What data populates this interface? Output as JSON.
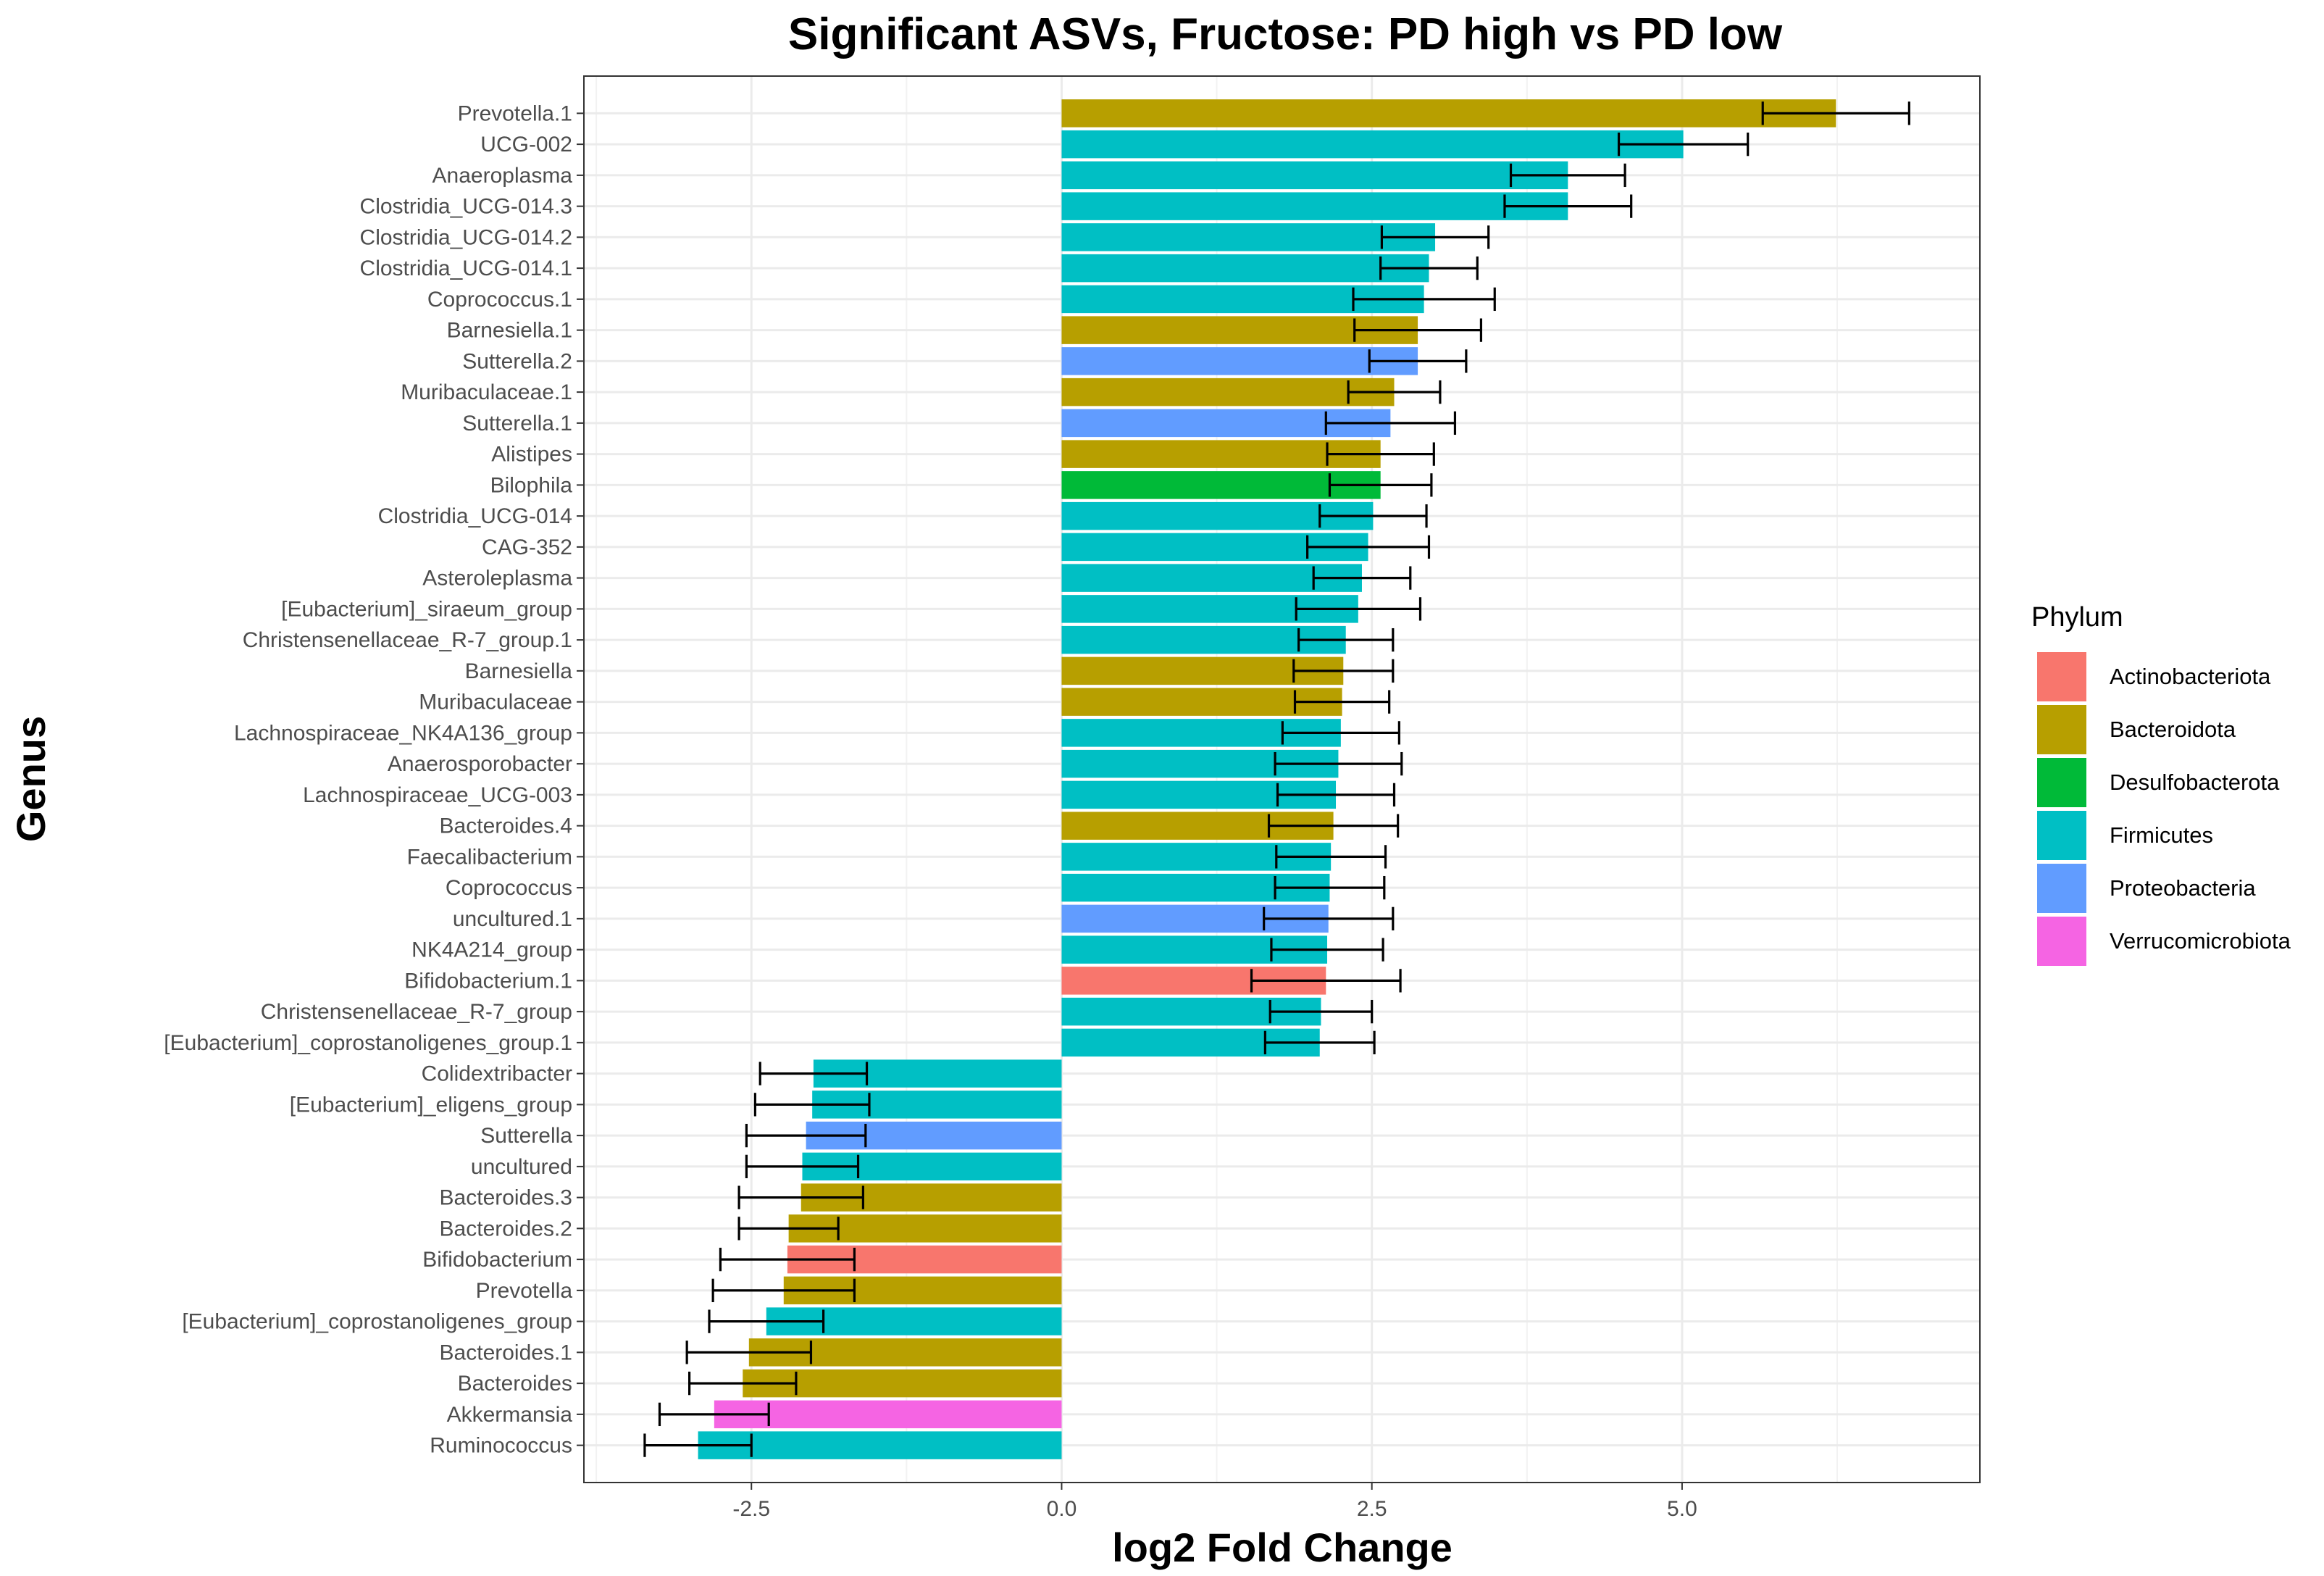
{
  "chart_data": {
    "type": "bar",
    "orientation": "horizontal",
    "title": "Significant ASVs, Fructose: PD high vs PD low",
    "xlabel": "log2 Fold Change",
    "ylabel": "Genus",
    "xlim": [
      -3.85,
      7.4
    ],
    "x_ticks": [
      -2.5,
      0.0,
      2.5,
      5.0
    ],
    "x_tick_labels": [
      "-2.5",
      "0.0",
      "2.5",
      "5.0"
    ],
    "grid": true,
    "legend": {
      "title": "Phylum",
      "placement": "right",
      "entries": [
        {
          "name": "Actinobacteriota",
          "color": "#F8766D"
        },
        {
          "name": "Bacteroidota",
          "color": "#B79F00"
        },
        {
          "name": "Desulfobacterota",
          "color": "#00BA38"
        },
        {
          "name": "Firmicutes",
          "color": "#00BFC4"
        },
        {
          "name": "Proteobacteria",
          "color": "#619CFF"
        },
        {
          "name": "Verrucomicrobiota",
          "color": "#F564E3"
        }
      ]
    },
    "bars": [
      {
        "genus": "Prevotella.1",
        "value": 6.24,
        "err": 0.59,
        "phylum": "Bacteroidota"
      },
      {
        "genus": "UCG-002",
        "value": 5.01,
        "err": 0.52,
        "phylum": "Firmicutes"
      },
      {
        "genus": "Anaeroplasma",
        "value": 4.08,
        "err": 0.46,
        "phylum": "Firmicutes"
      },
      {
        "genus": "Clostridia_UCG-014.3",
        "value": 4.08,
        "err": 0.51,
        "phylum": "Firmicutes"
      },
      {
        "genus": "Clostridia_UCG-014.2",
        "value": 3.01,
        "err": 0.43,
        "phylum": "Firmicutes"
      },
      {
        "genus": "Clostridia_UCG-014.1",
        "value": 2.96,
        "err": 0.39,
        "phylum": "Firmicutes"
      },
      {
        "genus": "Coprococcus.1",
        "value": 2.92,
        "err": 0.57,
        "phylum": "Firmicutes"
      },
      {
        "genus": "Barnesiella.1",
        "value": 2.87,
        "err": 0.51,
        "phylum": "Bacteroidota"
      },
      {
        "genus": "Sutterella.2",
        "value": 2.87,
        "err": 0.39,
        "phylum": "Proteobacteria"
      },
      {
        "genus": "Muribaculaceae.1",
        "value": 2.68,
        "err": 0.37,
        "phylum": "Bacteroidota"
      },
      {
        "genus": "Sutterella.1",
        "value": 2.65,
        "err": 0.52,
        "phylum": "Proteobacteria"
      },
      {
        "genus": "Alistipes",
        "value": 2.57,
        "err": 0.43,
        "phylum": "Bacteroidota"
      },
      {
        "genus": "Bilophila",
        "value": 2.57,
        "err": 0.41,
        "phylum": "Desulfobacterota"
      },
      {
        "genus": "Clostridia_UCG-014",
        "value": 2.51,
        "err": 0.43,
        "phylum": "Firmicutes"
      },
      {
        "genus": "CAG-352",
        "value": 2.47,
        "err": 0.49,
        "phylum": "Firmicutes"
      },
      {
        "genus": "Asteroleplasma",
        "value": 2.42,
        "err": 0.39,
        "phylum": "Firmicutes"
      },
      {
        "genus": "[Eubacterium]_siraeum_group",
        "value": 2.39,
        "err": 0.5,
        "phylum": "Firmicutes"
      },
      {
        "genus": "Christensenellaceae_R-7_group.1",
        "value": 2.29,
        "err": 0.38,
        "phylum": "Firmicutes"
      },
      {
        "genus": "Barnesiella",
        "value": 2.27,
        "err": 0.4,
        "phylum": "Bacteroidota"
      },
      {
        "genus": "Muribaculaceae",
        "value": 2.26,
        "err": 0.38,
        "phylum": "Bacteroidota"
      },
      {
        "genus": "Lachnospiraceae_NK4A136_group",
        "value": 2.25,
        "err": 0.47,
        "phylum": "Firmicutes"
      },
      {
        "genus": "Anaerosporobacter",
        "value": 2.23,
        "err": 0.51,
        "phylum": "Firmicutes"
      },
      {
        "genus": "Lachnospiraceae_UCG-003",
        "value": 2.21,
        "err": 0.47,
        "phylum": "Firmicutes"
      },
      {
        "genus": "Bacteroides.4",
        "value": 2.19,
        "err": 0.52,
        "phylum": "Bacteroidota"
      },
      {
        "genus": "Faecalibacterium",
        "value": 2.17,
        "err": 0.44,
        "phylum": "Firmicutes"
      },
      {
        "genus": "Coprococcus",
        "value": 2.16,
        "err": 0.44,
        "phylum": "Firmicutes"
      },
      {
        "genus": "uncultured.1",
        "value": 2.15,
        "err": 0.52,
        "phylum": "Proteobacteria"
      },
      {
        "genus": "NK4A214_group",
        "value": 2.14,
        "err": 0.45,
        "phylum": "Firmicutes"
      },
      {
        "genus": "Bifidobacterium.1",
        "value": 2.13,
        "err": 0.6,
        "phylum": "Actinobacteriota"
      },
      {
        "genus": "Christensenellaceae_R-7_group",
        "value": 2.09,
        "err": 0.41,
        "phylum": "Firmicutes"
      },
      {
        "genus": "[Eubacterium]_coprostanoligenes_group.1",
        "value": 2.08,
        "err": 0.44,
        "phylum": "Firmicutes"
      },
      {
        "genus": "Colidextribacter",
        "value": -2.0,
        "err": 0.43,
        "phylum": "Firmicutes"
      },
      {
        "genus": "[Eubacterium]_eligens_group",
        "value": -2.01,
        "err": 0.46,
        "phylum": "Firmicutes"
      },
      {
        "genus": "Sutterella",
        "value": -2.06,
        "err": 0.48,
        "phylum": "Proteobacteria"
      },
      {
        "genus": "uncultured",
        "value": -2.09,
        "err": 0.45,
        "phylum": "Firmicutes"
      },
      {
        "genus": "Bacteroides.3",
        "value": -2.1,
        "err": 0.5,
        "phylum": "Bacteroidota"
      },
      {
        "genus": "Bacteroides.2",
        "value": -2.2,
        "err": 0.4,
        "phylum": "Bacteroidota"
      },
      {
        "genus": "Bifidobacterium",
        "value": -2.21,
        "err": 0.54,
        "phylum": "Actinobacteriota"
      },
      {
        "genus": "Prevotella",
        "value": -2.24,
        "err": 0.57,
        "phylum": "Bacteroidota"
      },
      {
        "genus": "[Eubacterium]_coprostanoligenes_group",
        "value": -2.38,
        "err": 0.46,
        "phylum": "Firmicutes"
      },
      {
        "genus": "Bacteroides.1",
        "value": -2.52,
        "err": 0.5,
        "phylum": "Bacteroidota"
      },
      {
        "genus": "Bacteroides",
        "value": -2.57,
        "err": 0.43,
        "phylum": "Bacteroidota"
      },
      {
        "genus": "Akkermansia",
        "value": -2.8,
        "err": 0.44,
        "phylum": "Verrucomicrobiota"
      },
      {
        "genus": "Ruminococcus",
        "value": -2.93,
        "err": 0.43,
        "phylum": "Firmicutes"
      }
    ]
  }
}
